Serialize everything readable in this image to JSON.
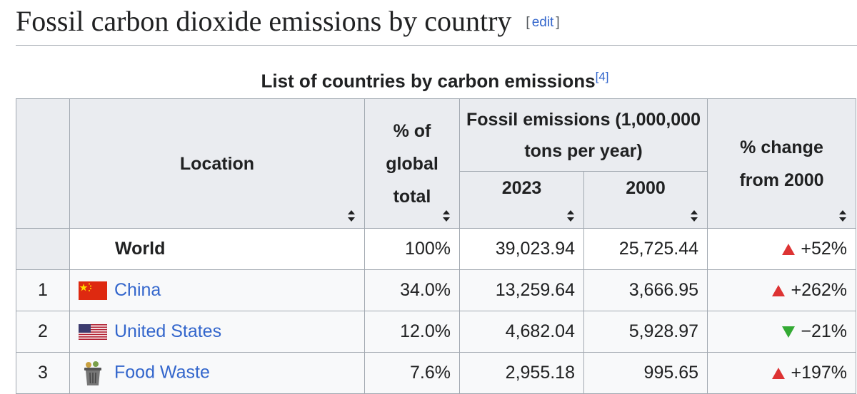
{
  "heading": {
    "title": "Fossil carbon dioxide emissions by country",
    "edit": {
      "open": "[",
      "label": "edit",
      "close": "]"
    }
  },
  "table": {
    "caption": {
      "text": "List of countries by carbon emissions",
      "ref": "[4]"
    },
    "headers": {
      "location": "Location",
      "share": "% of global total",
      "emissions": "Fossil emissions (1,000,000 tons per year)",
      "year_2023": "2023",
      "year_2000": "2000",
      "change": "% change from 2000"
    },
    "rows": [
      {
        "location": "World",
        "share": "100%",
        "e2023": "39,023.94",
        "e2000": "25,725.44",
        "change": "+52%"
      },
      {
        "rank": "1",
        "location": "China",
        "share": "34.0%",
        "e2023": "13,259.64",
        "e2000": "3,666.95",
        "change": "+262%"
      },
      {
        "rank": "2",
        "location": "United States",
        "share": "12.0%",
        "e2023": "4,682.04",
        "e2000": "5,928.97",
        "change": "−21%"
      },
      {
        "rank": "3",
        "location": "Food Waste",
        "share": "7.6%",
        "e2023": "2,955.18",
        "e2000": "995.65",
        "change": "+197%"
      }
    ]
  }
}
